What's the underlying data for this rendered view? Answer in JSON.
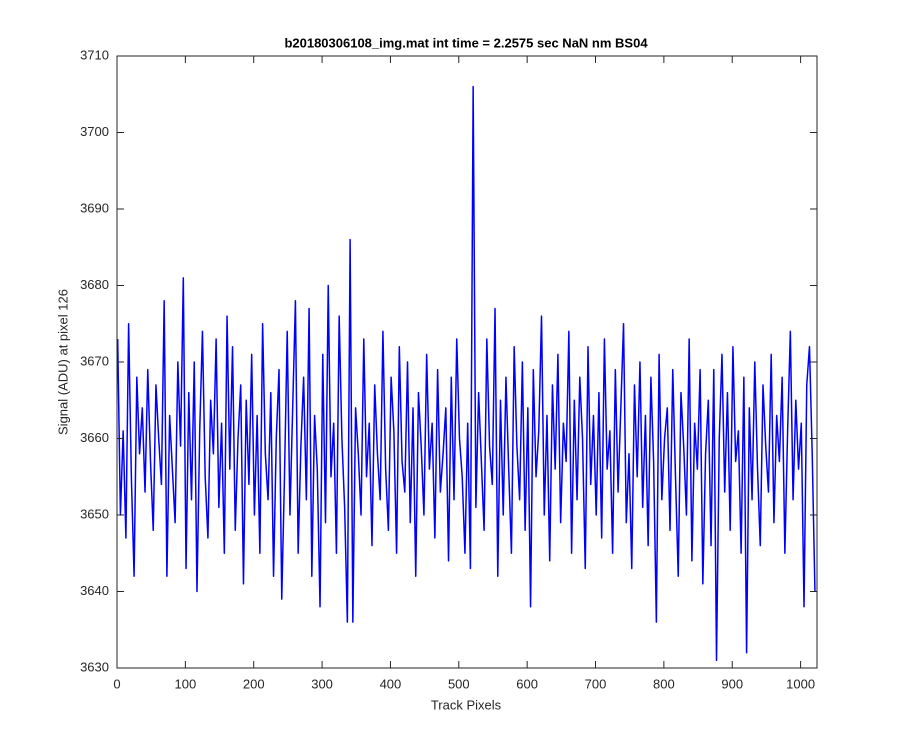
{
  "chart_data": {
    "type": "line",
    "title": "b20180306108_img.mat int time = 2.2575 sec  NaN nm BS04",
    "x_label": "Track Pixels",
    "y_label": "Signal (ADU) at pixel 126",
    "color": "#0000ff",
    "xlim": [
      0,
      1024
    ],
    "ylim": [
      3630,
      3710
    ],
    "xticks": [
      0,
      100,
      200,
      300,
      400,
      500,
      600,
      700,
      800,
      900,
      1000
    ],
    "yticks": [
      3630,
      3640,
      3650,
      3660,
      3670,
      3680,
      3690,
      3700,
      3710
    ],
    "x": [
      1,
      5,
      9,
      13,
      17,
      21,
      25,
      29,
      33,
      37,
      41,
      45,
      49,
      53,
      57,
      61,
      65,
      69,
      73,
      77,
      81,
      85,
      89,
      93,
      97,
      101,
      105,
      109,
      113,
      117,
      121,
      125,
      129,
      133,
      137,
      141,
      145,
      149,
      153,
      157,
      161,
      165,
      169,
      173,
      177,
      181,
      185,
      189,
      193,
      197,
      201,
      205,
      209,
      213,
      217,
      221,
      225,
      229,
      233,
      237,
      241,
      245,
      249,
      253,
      257,
      261,
      265,
      269,
      273,
      277,
      281,
      285,
      289,
      293,
      297,
      301,
      305,
      309,
      313,
      317,
      321,
      325,
      329,
      333,
      337,
      341,
      345,
      349,
      353,
      357,
      361,
      365,
      369,
      373,
      377,
      381,
      385,
      389,
      393,
      397,
      401,
      405,
      409,
      413,
      417,
      421,
      425,
      429,
      433,
      437,
      441,
      445,
      449,
      453,
      457,
      461,
      465,
      469,
      473,
      477,
      481,
      485,
      489,
      493,
      497,
      501,
      505,
      509,
      513,
      517,
      521,
      525,
      529,
      533,
      537,
      541,
      545,
      549,
      553,
      557,
      561,
      565,
      569,
      573,
      577,
      581,
      585,
      589,
      593,
      597,
      601,
      605,
      609,
      613,
      617,
      621,
      625,
      629,
      633,
      637,
      641,
      645,
      649,
      653,
      657,
      661,
      665,
      669,
      673,
      677,
      681,
      685,
      689,
      693,
      697,
      701,
      705,
      709,
      713,
      717,
      721,
      725,
      729,
      733,
      737,
      741,
      745,
      749,
      753,
      757,
      761,
      765,
      769,
      773,
      777,
      781,
      785,
      789,
      793,
      797,
      801,
      805,
      809,
      813,
      817,
      821,
      825,
      829,
      833,
      837,
      841,
      845,
      849,
      853,
      857,
      861,
      865,
      869,
      873,
      877,
      881,
      885,
      889,
      893,
      897,
      901,
      905,
      909,
      913,
      917,
      921,
      925,
      929,
      933,
      937,
      941,
      945,
      949,
      953,
      957,
      961,
      965,
      969,
      973,
      977,
      981,
      985,
      989,
      993,
      997,
      1001,
      1005,
      1009,
      1013,
      1017,
      1021
    ],
    "values": [
      3673,
      3650,
      3661,
      3647,
      3675,
      3655,
      3642,
      3668,
      3658,
      3664,
      3653,
      3669,
      3657,
      3648,
      3667,
      3660,
      3654,
      3678,
      3642,
      3663,
      3656,
      3649,
      3670,
      3659,
      3681,
      3643,
      3666,
      3652,
      3670,
      3640,
      3661,
      3674,
      3655,
      3647,
      3665,
      3658,
      3673,
      3651,
      3662,
      3645,
      3676,
      3656,
      3672,
      3648,
      3660,
      3667,
      3641,
      3665,
      3654,
      3671,
      3650,
      3663,
      3645,
      3675,
      3658,
      3652,
      3666,
      3642,
      3660,
      3669,
      3639,
      3655,
      3674,
      3650,
      3664,
      3678,
      3645,
      3659,
      3668,
      3652,
      3677,
      3642,
      3663,
      3656,
      3638,
      3671,
      3649,
      3680,
      3655,
      3662,
      3645,
      3676,
      3660,
      3651,
      3636,
      3686,
      3636,
      3664,
      3658,
      3650,
      3673,
      3655,
      3662,
      3646,
      3667,
      3658,
      3652,
      3674,
      3656,
      3648,
      3668,
      3661,
      3645,
      3672,
      3657,
      3653,
      3670,
      3649,
      3664,
      3642,
      3666,
      3659,
      3650,
      3671,
      3656,
      3662,
      3647,
      3669,
      3653,
      3658,
      3664,
      3644,
      3668,
      3652,
      3673,
      3660,
      3655,
      3645,
      3662,
      3643,
      3706,
      3651,
      3666,
      3657,
      3648,
      3673,
      3659,
      3654,
      3677,
      3642,
      3665,
      3650,
      3668,
      3656,
      3645,
      3672,
      3659,
      3652,
      3670,
      3648,
      3664,
      3638,
      3669,
      3655,
      3661,
      3676,
      3650,
      3663,
      3644,
      3667,
      3656,
      3671,
      3649,
      3662,
      3657,
      3674,
      3645,
      3665,
      3652,
      3668,
      3660,
      3643,
      3672,
      3654,
      3663,
      3650,
      3666,
      3647,
      3673,
      3656,
      3661,
      3645,
      3669,
      3653,
      3664,
      3675,
      3649,
      3658,
      3643,
      3667,
      3655,
      3670,
      3651,
      3663,
      3646,
      3668,
      3657,
      3636,
      3671,
      3652,
      3660,
      3664,
      3648,
      3669,
      3655,
      3642,
      3666,
      3659,
      3650,
      3673,
      3644,
      3662,
      3656,
      3669,
      3641,
      3658,
      3665,
      3646,
      3669,
      3631,
      3660,
      3671,
      3653,
      3666,
      3648,
      3672,
      3657,
      3661,
      3645,
      3668,
      3632,
      3664,
      3652,
      3670,
      3656,
      3646,
      3667,
      3659,
      3653,
      3671,
      3649,
      3663,
      3657,
      3668,
      3645,
      3661,
      3674,
      3652,
      3665,
      3656,
      3662,
      3638,
      3667,
      3672,
      3658,
      3640
    ]
  }
}
